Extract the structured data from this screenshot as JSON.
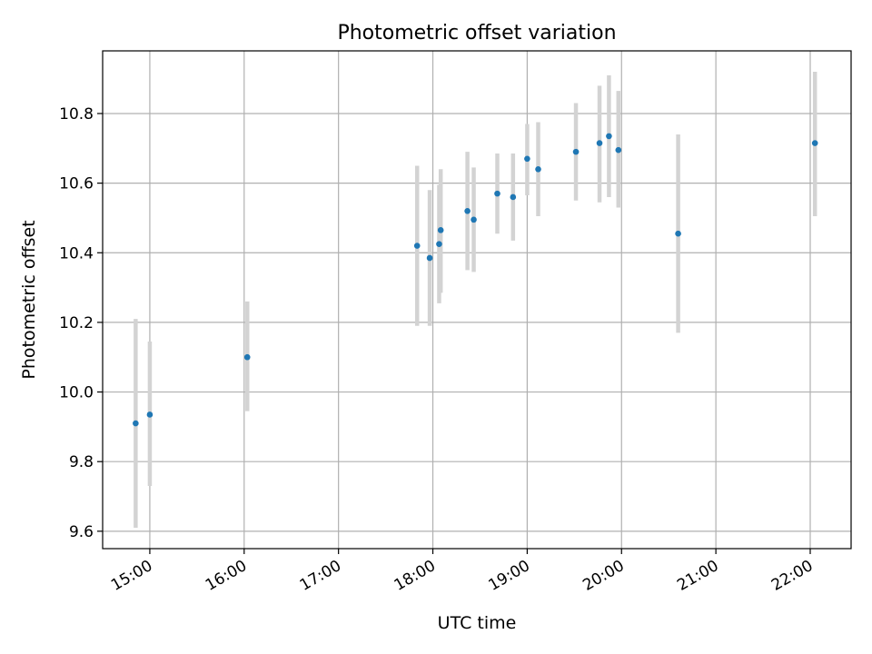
{
  "chart_data": {
    "type": "scatter",
    "title": "Photometric offset variation",
    "xlabel": "UTC time",
    "ylabel": "Photometric offset",
    "xlim": [
      "14:30",
      "22:26"
    ],
    "ylim": [
      9.55,
      10.98
    ],
    "x_ticks": [
      "15:00",
      "16:00",
      "17:00",
      "18:00",
      "19:00",
      "20:00",
      "21:00",
      "22:00"
    ],
    "y_ticks": [
      "9.6",
      "9.8",
      "10.0",
      "10.2",
      "10.4",
      "10.6",
      "10.8"
    ],
    "grid": true,
    "points": [
      {
        "x": "14:51",
        "y": 9.91,
        "err_low": 9.61,
        "err_high": 10.21
      },
      {
        "x": "15:00",
        "y": 9.935,
        "err_low": 9.73,
        "err_high": 10.145
      },
      {
        "x": "16:02",
        "y": 10.1,
        "err_low": 9.945,
        "err_high": 10.26
      },
      {
        "x": "17:50",
        "y": 10.42,
        "err_low": 10.19,
        "err_high": 10.65
      },
      {
        "x": "17:58",
        "y": 10.385,
        "err_low": 10.19,
        "err_high": 10.58
      },
      {
        "x": "18:04",
        "y": 10.425,
        "err_low": 10.255,
        "err_high": 10.595
      },
      {
        "x": "18:05",
        "y": 10.465,
        "err_low": 10.285,
        "err_high": 10.64
      },
      {
        "x": "18:22",
        "y": 10.52,
        "err_low": 10.35,
        "err_high": 10.69
      },
      {
        "x": "18:26",
        "y": 10.495,
        "err_low": 10.345,
        "err_high": 10.645
      },
      {
        "x": "18:41",
        "y": 10.57,
        "err_low": 10.455,
        "err_high": 10.685
      },
      {
        "x": "18:51",
        "y": 10.56,
        "err_low": 10.435,
        "err_high": 10.685
      },
      {
        "x": "19:00",
        "y": 10.67,
        "err_low": 10.565,
        "err_high": 10.77
      },
      {
        "x": "19:07",
        "y": 10.64,
        "err_low": 10.505,
        "err_high": 10.775
      },
      {
        "x": "19:31",
        "y": 10.69,
        "err_low": 10.55,
        "err_high": 10.83
      },
      {
        "x": "19:46",
        "y": 10.715,
        "err_low": 10.545,
        "err_high": 10.88
      },
      {
        "x": "19:52",
        "y": 10.735,
        "err_low": 10.56,
        "err_high": 10.91
      },
      {
        "x": "19:58",
        "y": 10.695,
        "err_low": 10.53,
        "err_high": 10.865
      },
      {
        "x": "20:36",
        "y": 10.455,
        "err_low": 10.17,
        "err_high": 10.74
      },
      {
        "x": "22:03",
        "y": 10.715,
        "err_low": 10.505,
        "err_high": 10.92
      }
    ],
    "colors": {
      "point": "#1f77b4",
      "errorbar": "#d3d3d3",
      "grid": "#b0b0b0",
      "axes": "#000000"
    }
  }
}
